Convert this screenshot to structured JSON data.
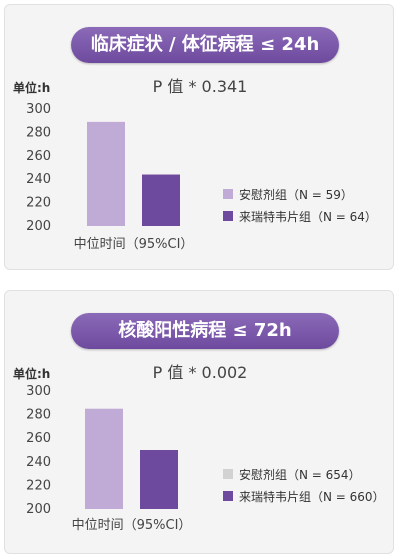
{
  "colors": {
    "accent_purple": "#6e4a9e",
    "light_purple": "#c0aad6",
    "legend_gray": "#d2d2d2",
    "title_bg": "#7a55ab"
  },
  "chart_data": [
    {
      "type": "bar",
      "title": "临床症状 / 体征病程 ≤ 24h",
      "subtitle": "P 值 * 0.341",
      "ylabel": "单位:h",
      "xlabel": "中位时间（95%CI）",
      "ylim": [
        200,
        300
      ],
      "yticks": [
        "300",
        "280",
        "260",
        "240",
        "220",
        "200"
      ],
      "series": [
        {
          "name": "安慰剂组（N = 59）",
          "value": 289,
          "color": "#c0aad6",
          "legend_color": "#c0aad6"
        },
        {
          "name": "来瑞特韦片组（N = 64）",
          "value": 244,
          "color": "#6e4a9e",
          "legend_color": "#6e4a9e"
        }
      ]
    },
    {
      "type": "bar",
      "title": "核酸阳性病程 ≤ 72h",
      "subtitle": "P 值 * 0.002",
      "ylabel": "单位:h",
      "xlabel": "中位时间（95%CI）",
      "ylim": [
        200,
        300
      ],
      "yticks": [
        "300",
        "280",
        "260",
        "240",
        "220",
        "200"
      ],
      "series": [
        {
          "name": "安慰剂组（N = 654）",
          "value": 285,
          "color": "#c0aad6",
          "legend_color": "#d2d2d2"
        },
        {
          "name": "来瑞特韦片组（N = 660）",
          "value": 250,
          "color": "#6e4a9e",
          "legend_color": "#6e4a9e"
        }
      ]
    }
  ]
}
